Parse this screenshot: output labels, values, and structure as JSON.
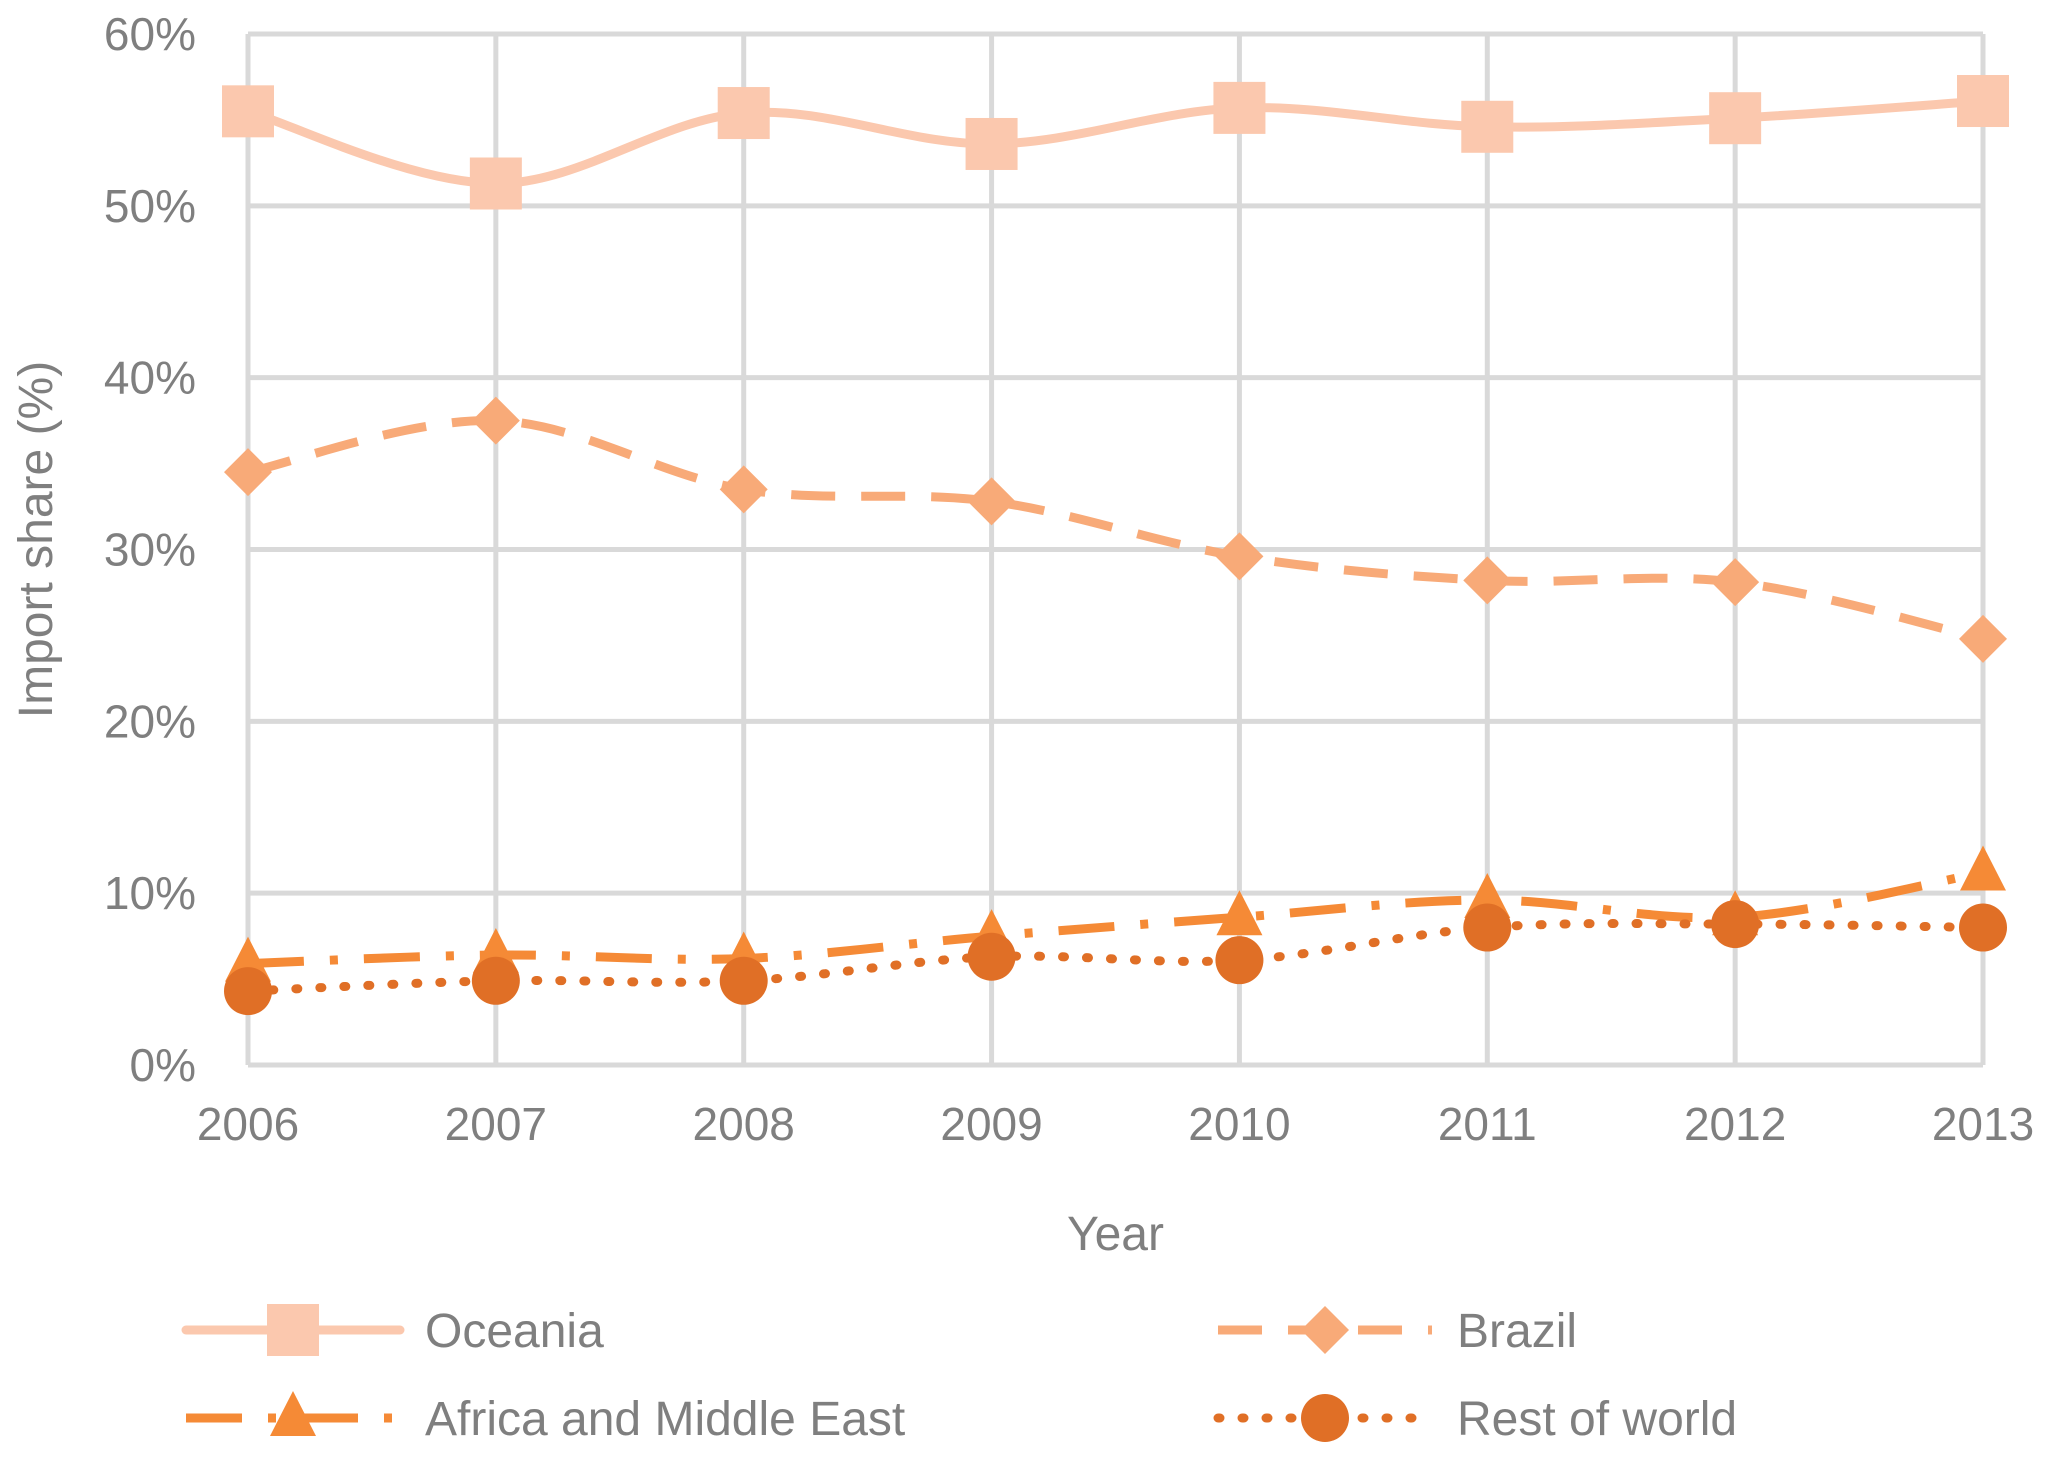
{
  "chart_data": {
    "type": "line",
    "title": "",
    "xlabel": "Year",
    "ylabel": "Import share (%)",
    "categories": [
      "2006",
      "2007",
      "2008",
      "2009",
      "2010",
      "2011",
      "2012",
      "2013"
    ],
    "ylim": [
      0,
      60
    ],
    "yticks": [
      0,
      10,
      20,
      30,
      40,
      50,
      60
    ],
    "ytick_labels": [
      "0%",
      "10%",
      "20%",
      "30%",
      "40%",
      "50%",
      "60%"
    ],
    "grid": true,
    "legend_position": "bottom",
    "series": [
      {
        "name": "Oceania",
        "values": [
          55.5,
          51.3,
          55.4,
          53.6,
          55.7,
          54.6,
          55.1,
          56.1
        ],
        "color": "#fbc8ae",
        "marker": "square",
        "line_style": "solid"
      },
      {
        "name": "Brazil",
        "values": [
          34.5,
          37.5,
          33.5,
          32.8,
          29.6,
          28.2,
          28.1,
          24.8
        ],
        "color": "#f8aa78",
        "marker": "diamond",
        "line_style": "dashed"
      },
      {
        "name": "Africa and Middle East",
        "values": [
          5.9,
          6.4,
          6.2,
          7.5,
          8.6,
          9.6,
          8.6,
          11.2
        ],
        "color": "#f58a36",
        "marker": "triangle",
        "line_style": "dashdot"
      },
      {
        "name": "Rest of world",
        "values": [
          4.3,
          4.9,
          4.9,
          6.3,
          6.1,
          8.0,
          8.2,
          8.0
        ],
        "color": "#e06f26",
        "marker": "circle",
        "line_style": "dotted"
      }
    ]
  }
}
